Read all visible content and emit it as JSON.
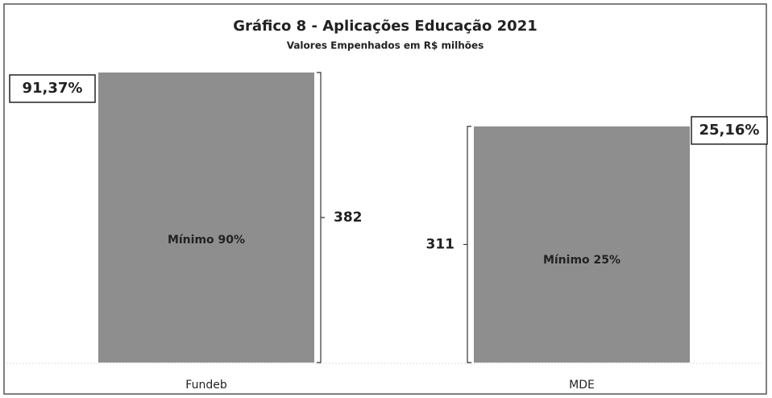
{
  "chart_data": {
    "type": "bar",
    "title": "Gráfico 8 - Aplicações Educação 2021",
    "subtitle": "Valores Empenhados em R$ milhões",
    "categories": [
      "Fundeb",
      "MDE"
    ],
    "values": [
      382,
      311
    ],
    "color": "#8e8e8e",
    "percent_labels": [
      "91,37%",
      "25,16%"
    ],
    "inner_labels": [
      "Mínimo 90%",
      "Mínimo 25%"
    ]
  }
}
